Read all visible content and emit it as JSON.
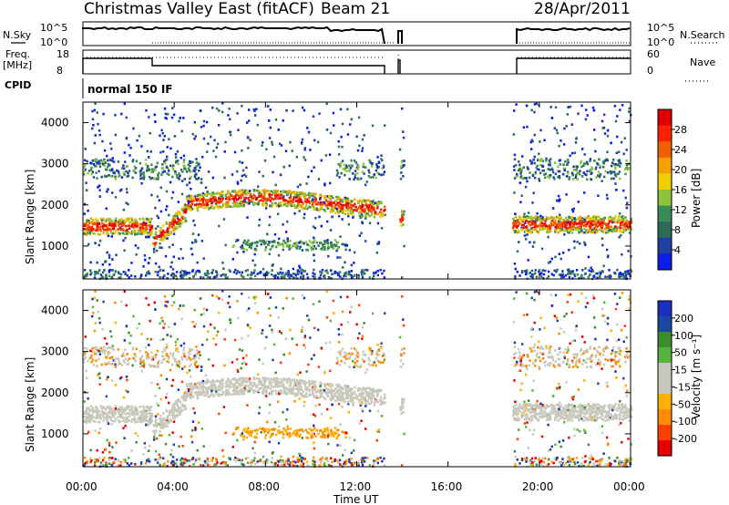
{
  "header": {
    "title": "Christmas Valley East (fitACF)",
    "beam": "Beam 21",
    "date": "28/Apr/2011"
  },
  "colors": {
    "power_scale": [
      "#0a1ee6",
      "#1f3fa6",
      "#2d6b59",
      "#3a8c56",
      "#8cc43a",
      "#f0d000",
      "#f4a000",
      "#f06000",
      "#ff2000",
      "#e00000"
    ],
    "velocity_scale": [
      "#e60000",
      "#ff4000",
      "#ff8c00",
      "#ffb000",
      "#c8c8bd",
      "#c8c8bd",
      "#55b53a",
      "#3a8c2d",
      "#1a48a0",
      "#1a30c0"
    ]
  },
  "chart_data": [
    {
      "type": "line",
      "name": "nsky-nsearch",
      "ylabel_left": "N.Sky",
      "ylabel_right": "N.Search",
      "yticks_left": [
        "10^5",
        "10^0"
      ],
      "yticks_right": [
        "10^5",
        "10^0"
      ],
      "left_series_style": "solid",
      "right_series_style": "dotted"
    },
    {
      "type": "line",
      "name": "freq-nave",
      "ylabel_left": "Freq.\n[MHz]",
      "ylabel_right": "Nave",
      "yticks_left": [
        "18",
        "8"
      ],
      "yticks_right": [
        "60",
        "0"
      ],
      "freq_segments": [
        [
          0.0,
          3.0,
          14.2
        ],
        [
          3.0,
          13.2,
          13.4
        ],
        [
          18.8,
          24.0,
          14.2
        ]
      ]
    },
    {
      "type": "table",
      "name": "cpid",
      "label": "CPID",
      "value": "normal 150 IF"
    },
    {
      "type": "heatmap",
      "name": "power",
      "ylabel": "Slant Range [km]",
      "yticks": [
        "1000",
        "2000",
        "3000",
        "4000"
      ],
      "ylim": [
        200,
        4500
      ],
      "xlim": [
        0,
        24
      ],
      "colorbar_label": "Power [dB]",
      "colorbar_ticks": [
        "28",
        "24",
        "20",
        "16",
        "12",
        "8",
        "4"
      ],
      "description_bands": [
        [
          0,
          3,
          1550,
          3000
        ],
        [
          3,
          13.2,
          1000,
          2300
        ],
        [
          13.2,
          14.0,
          1000,
          2200
        ],
        [
          18.8,
          24,
          1550,
          3200
        ]
      ]
    },
    {
      "type": "heatmap",
      "name": "velocity",
      "ylabel": "Slant Range [km]",
      "yticks": [
        "1000",
        "2000",
        "3000",
        "4000"
      ],
      "ylim": [
        200,
        4500
      ],
      "xlim": [
        0,
        24
      ],
      "colorbar_label": "Velocity [m s⁻¹]",
      "colorbar_ticks": [
        "200",
        "100",
        "50",
        "15",
        "-15",
        "-50",
        "-100",
        "-200"
      ],
      "xticks": [
        "00:00",
        "04:00",
        "08:00",
        "12:00",
        "16:00",
        "20:00",
        "00:00"
      ],
      "xlabel": "Time UT"
    }
  ]
}
